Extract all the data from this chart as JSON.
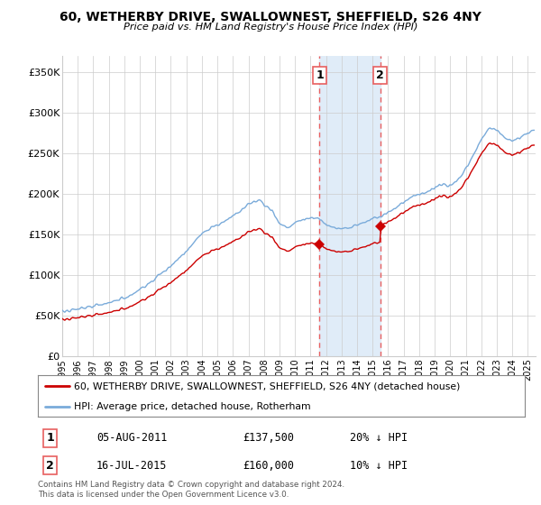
{
  "title": "60, WETHERBY DRIVE, SWALLOWNEST, SHEFFIELD, S26 4NY",
  "subtitle": "Price paid vs. HM Land Registry's House Price Index (HPI)",
  "ylabel_ticks": [
    "£0",
    "£50K",
    "£100K",
    "£150K",
    "£200K",
    "£250K",
    "£300K",
    "£350K"
  ],
  "ytick_values": [
    0,
    50000,
    100000,
    150000,
    200000,
    250000,
    300000,
    350000
  ],
  "ylim": [
    0,
    370000
  ],
  "xlim_start": 1995.0,
  "xlim_end": 2025.5,
  "legend_line1": "60, WETHERBY DRIVE, SWALLOWNEST, SHEFFIELD, S26 4NY (detached house)",
  "legend_line2": "HPI: Average price, detached house, Rotherham",
  "transaction1_date": "05-AUG-2011",
  "transaction1_price": "£137,500",
  "transaction1_hpi": "20% ↓ HPI",
  "transaction1_year": 2011.583,
  "transaction1_value": 137500,
  "transaction2_date": "16-JUL-2015",
  "transaction2_price": "£160,000",
  "transaction2_hpi": "10% ↓ HPI",
  "transaction2_year": 2015.5,
  "transaction2_value": 160000,
  "footer": "Contains HM Land Registry data © Crown copyright and database right 2024.\nThis data is licensed under the Open Government Licence v3.0.",
  "hpi_color": "#7aabda",
  "price_color": "#cc0000",
  "vline_color": "#e86060",
  "shade_color": "#e0ecf8",
  "background_color": "#ffffff",
  "grid_color": "#cccccc",
  "hpi_anchors_x": [
    1995.0,
    1996.0,
    1997.0,
    1998.0,
    1999.0,
    2000.0,
    2001.0,
    2002.0,
    2003.0,
    2004.0,
    2005.0,
    2006.0,
    2007.0,
    2007.7,
    2008.5,
    2009.0,
    2009.5,
    2010.0,
    2010.5,
    2011.0,
    2011.5,
    2012.0,
    2012.5,
    2013.0,
    2013.5,
    2014.0,
    2014.5,
    2015.0,
    2015.5,
    2016.0,
    2016.5,
    2017.0,
    2017.5,
    2018.0,
    2018.5,
    2019.0,
    2019.5,
    2020.0,
    2020.5,
    2021.0,
    2021.5,
    2022.0,
    2022.5,
    2023.0,
    2023.5,
    2024.0,
    2024.5,
    2025.0,
    2025.3
  ],
  "hpi_anchors_y": [
    55000,
    58000,
    61000,
    65000,
    72000,
    82000,
    96000,
    112000,
    130000,
    152000,
    162000,
    172000,
    188000,
    192000,
    178000,
    162000,
    158000,
    165000,
    168000,
    170000,
    168000,
    162000,
    158000,
    157000,
    158000,
    162000,
    165000,
    170000,
    172000,
    178000,
    183000,
    190000,
    196000,
    200000,
    203000,
    208000,
    212000,
    210000,
    218000,
    232000,
    250000,
    268000,
    282000,
    278000,
    268000,
    265000,
    270000,
    275000,
    278000
  ]
}
